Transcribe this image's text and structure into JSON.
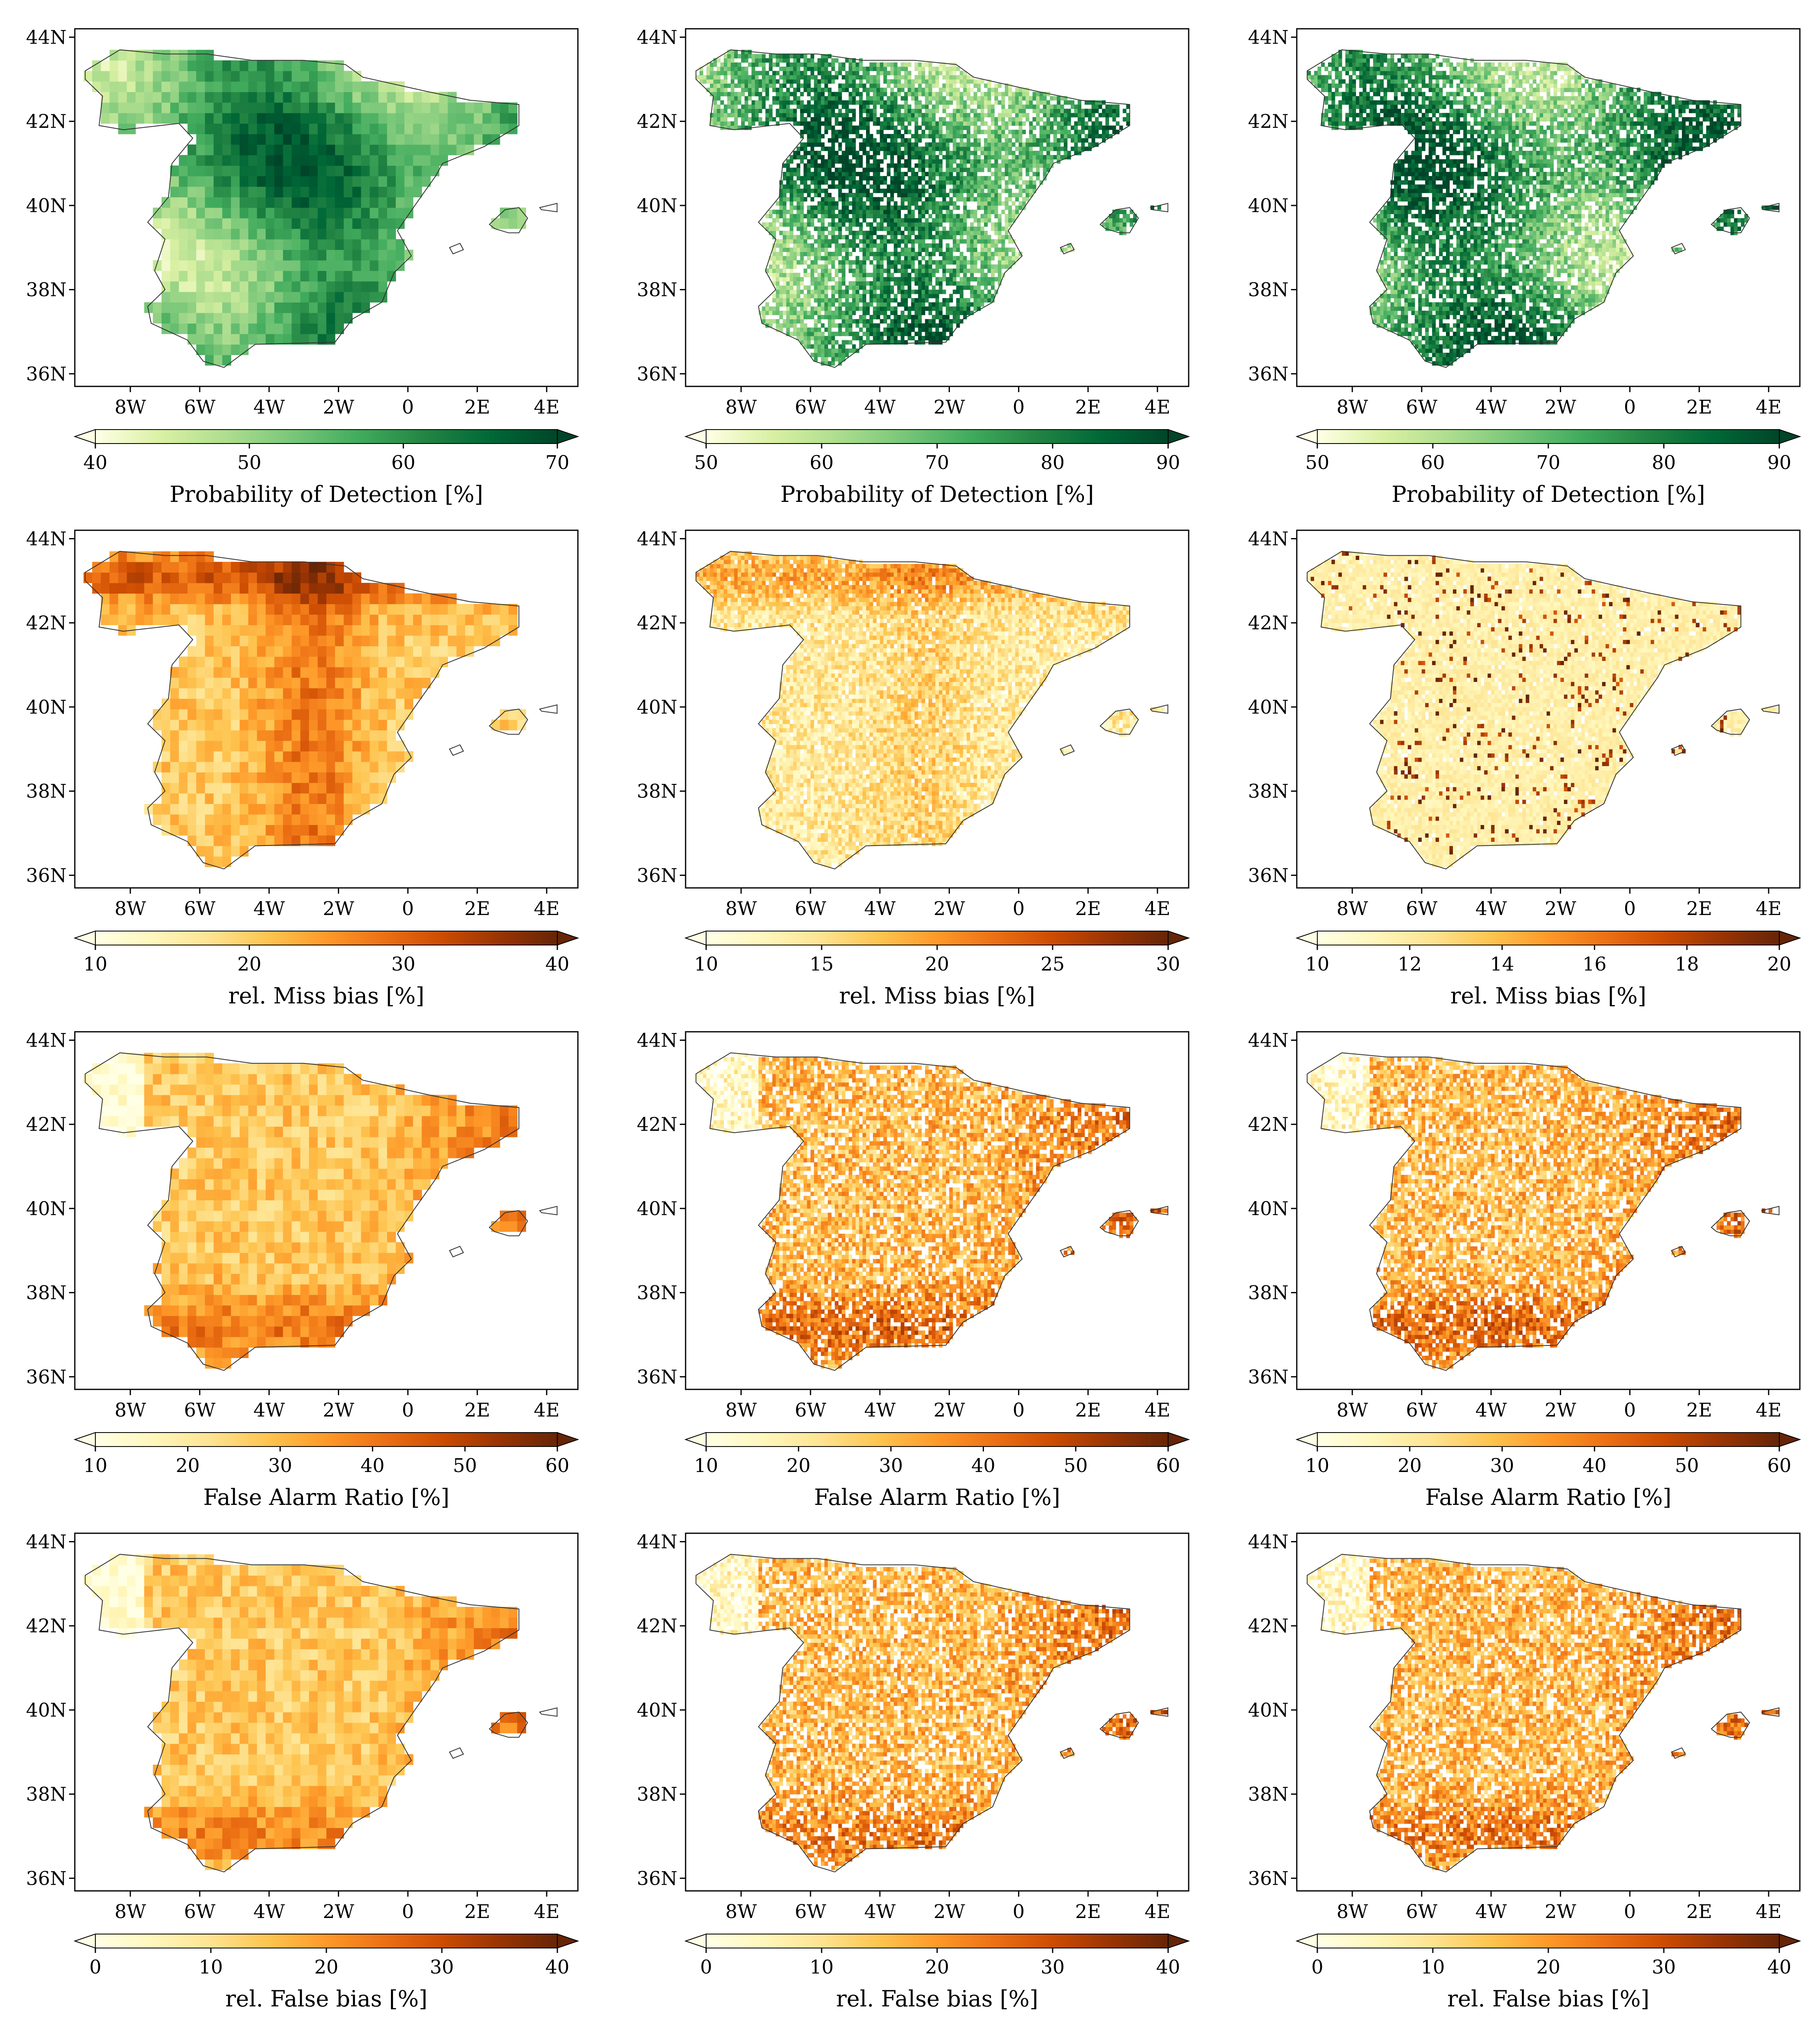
{
  "figure": {
    "rows": [
      {
        "metric": "Probability of Detection [%]",
        "palette": "greens",
        "panels": [
          {
            "colorbar": {
              "label": "Probability of Detection [%]",
              "ticks": [
                40,
                50,
                60,
                70
              ],
              "range": [
                40,
                70
              ],
              "extend": "both"
            },
            "style": "coarse"
          },
          {
            "colorbar": {
              "label": "Probability of Detection [%]",
              "ticks": [
                50,
                60,
                70,
                80,
                90
              ],
              "range": [
                50,
                90
              ],
              "extend": "both"
            },
            "style": "fine"
          },
          {
            "colorbar": {
              "label": "Probability of Detection [%]",
              "ticks": [
                50,
                60,
                70,
                80,
                90
              ],
              "range": [
                50,
                90
              ],
              "extend": "both"
            },
            "style": "fine"
          }
        ]
      },
      {
        "metric": "rel. Miss bias [%]",
        "palette": "oranges",
        "panels": [
          {
            "colorbar": {
              "label": "rel. Miss bias [%]",
              "ticks": [
                10,
                20,
                30,
                40
              ],
              "range": [
                10,
                40
              ],
              "extend": "both"
            },
            "style": "coarse"
          },
          {
            "colorbar": {
              "label": "rel. Miss bias [%]",
              "ticks": [
                10,
                15,
                20,
                25,
                30
              ],
              "range": [
                10,
                30
              ],
              "extend": "both"
            },
            "style": "fine"
          },
          {
            "colorbar": {
              "label": "rel. Miss bias [%]",
              "ticks": [
                10,
                12,
                14,
                16,
                18,
                20
              ],
              "range": [
                10,
                20
              ],
              "extend": "both"
            },
            "style": "fine"
          }
        ]
      },
      {
        "metric": "False Alarm Ratio [%]",
        "palette": "oranges",
        "panels": [
          {
            "colorbar": {
              "label": "False Alarm Ratio [%]",
              "ticks": [
                10,
                20,
                30,
                40,
                50,
                60
              ],
              "range": [
                10,
                60
              ],
              "extend": "both"
            },
            "style": "coarse"
          },
          {
            "colorbar": {
              "label": "False Alarm Ratio [%]",
              "ticks": [
                10,
                20,
                30,
                40,
                50,
                60
              ],
              "range": [
                10,
                60
              ],
              "extend": "both"
            },
            "style": "fine"
          },
          {
            "colorbar": {
              "label": "False Alarm Ratio [%]",
              "ticks": [
                10,
                20,
                30,
                40,
                50,
                60
              ],
              "range": [
                10,
                60
              ],
              "extend": "both"
            },
            "style": "fine"
          }
        ]
      },
      {
        "metric": "rel. False bias [%]",
        "palette": "oranges",
        "panels": [
          {
            "colorbar": {
              "label": "rel. False bias [%]",
              "ticks": [
                0,
                10,
                20,
                30,
                40
              ],
              "range": [
                0,
                40
              ],
              "extend": "both"
            },
            "style": "coarse"
          },
          {
            "colorbar": {
              "label": "rel. False bias [%]",
              "ticks": [
                0,
                10,
                20,
                30,
                40
              ],
              "range": [
                0,
                40
              ],
              "extend": "both"
            },
            "style": "fine"
          },
          {
            "colorbar": {
              "label": "rel. False bias [%]",
              "ticks": [
                0,
                10,
                20,
                30,
                40
              ],
              "range": [
                0,
                40
              ],
              "extend": "both"
            },
            "style": "fine"
          }
        ]
      }
    ],
    "lon_ticks": [
      "8W",
      "6W",
      "4W",
      "2W",
      "0",
      "2E",
      "4E"
    ],
    "lon_tick_values": [
      -8,
      -6,
      -4,
      -2,
      0,
      2,
      4
    ],
    "lat_ticks": [
      "44N",
      "42N",
      "40N",
      "38N",
      "36N"
    ],
    "lat_tick_values": [
      44,
      42,
      40,
      38,
      36
    ],
    "extent": {
      "lon": [
        -9.6,
        4.9
      ],
      "lat": [
        35.7,
        44.2
      ]
    },
    "palettes": {
      "greens": [
        "#ffffe5",
        "#d9f0a3",
        "#addd8e",
        "#78c679",
        "#41ab5d",
        "#238443",
        "#006837",
        "#004529"
      ],
      "oranges": [
        "#ffffe5",
        "#fff7bc",
        "#fee391",
        "#fec44f",
        "#fe9929",
        "#ec7014",
        "#cc4c02",
        "#993404",
        "#662506"
      ]
    },
    "land_outline": [
      [
        -9.3,
        43.2
      ],
      [
        -8.3,
        43.7
      ],
      [
        -7.0,
        43.6
      ],
      [
        -5.8,
        43.6
      ],
      [
        -4.5,
        43.45
      ],
      [
        -3.0,
        43.45
      ],
      [
        -1.8,
        43.35
      ],
      [
        -1.3,
        43.05
      ],
      [
        0.6,
        42.7
      ],
      [
        1.8,
        42.5
      ],
      [
        3.2,
        42.4
      ],
      [
        3.2,
        41.9
      ],
      [
        2.2,
        41.4
      ],
      [
        1.0,
        41.0
      ],
      [
        0.8,
        40.7
      ],
      [
        0.2,
        40.0
      ],
      [
        -0.3,
        39.4
      ],
      [
        0.1,
        38.8
      ],
      [
        -0.4,
        38.4
      ],
      [
        -0.75,
        37.7
      ],
      [
        -1.6,
        37.3
      ],
      [
        -2.1,
        36.75
      ],
      [
        -4.4,
        36.7
      ],
      [
        -5.3,
        36.15
      ],
      [
        -5.9,
        36.3
      ],
      [
        -6.35,
        36.8
      ],
      [
        -7.4,
        37.2
      ],
      [
        -7.5,
        37.6
      ],
      [
        -7.0,
        38.0
      ],
      [
        -7.3,
        38.45
      ],
      [
        -7.0,
        39.2
      ],
      [
        -7.5,
        39.6
      ],
      [
        -6.9,
        40.2
      ],
      [
        -6.8,
        41.0
      ],
      [
        -6.2,
        41.6
      ],
      [
        -6.6,
        41.95
      ],
      [
        -8.2,
        41.8
      ],
      [
        -8.9,
        41.9
      ],
      [
        -8.8,
        42.6
      ],
      [
        -9.3,
        43.0
      ]
    ],
    "islands": [
      [
        [
          2.35,
          39.55
        ],
        [
          2.8,
          39.9
        ],
        [
          3.2,
          39.95
        ],
        [
          3.45,
          39.7
        ],
        [
          3.2,
          39.35
        ],
        [
          2.9,
          39.35
        ],
        [
          2.5,
          39.45
        ]
      ],
      [
        [
          3.8,
          39.95
        ],
        [
          4.3,
          40.05
        ],
        [
          4.3,
          39.85
        ],
        [
          3.85,
          39.9
        ]
      ],
      [
        [
          1.2,
          39.0
        ],
        [
          1.5,
          39.1
        ],
        [
          1.6,
          38.95
        ],
        [
          1.3,
          38.85
        ]
      ]
    ]
  }
}
